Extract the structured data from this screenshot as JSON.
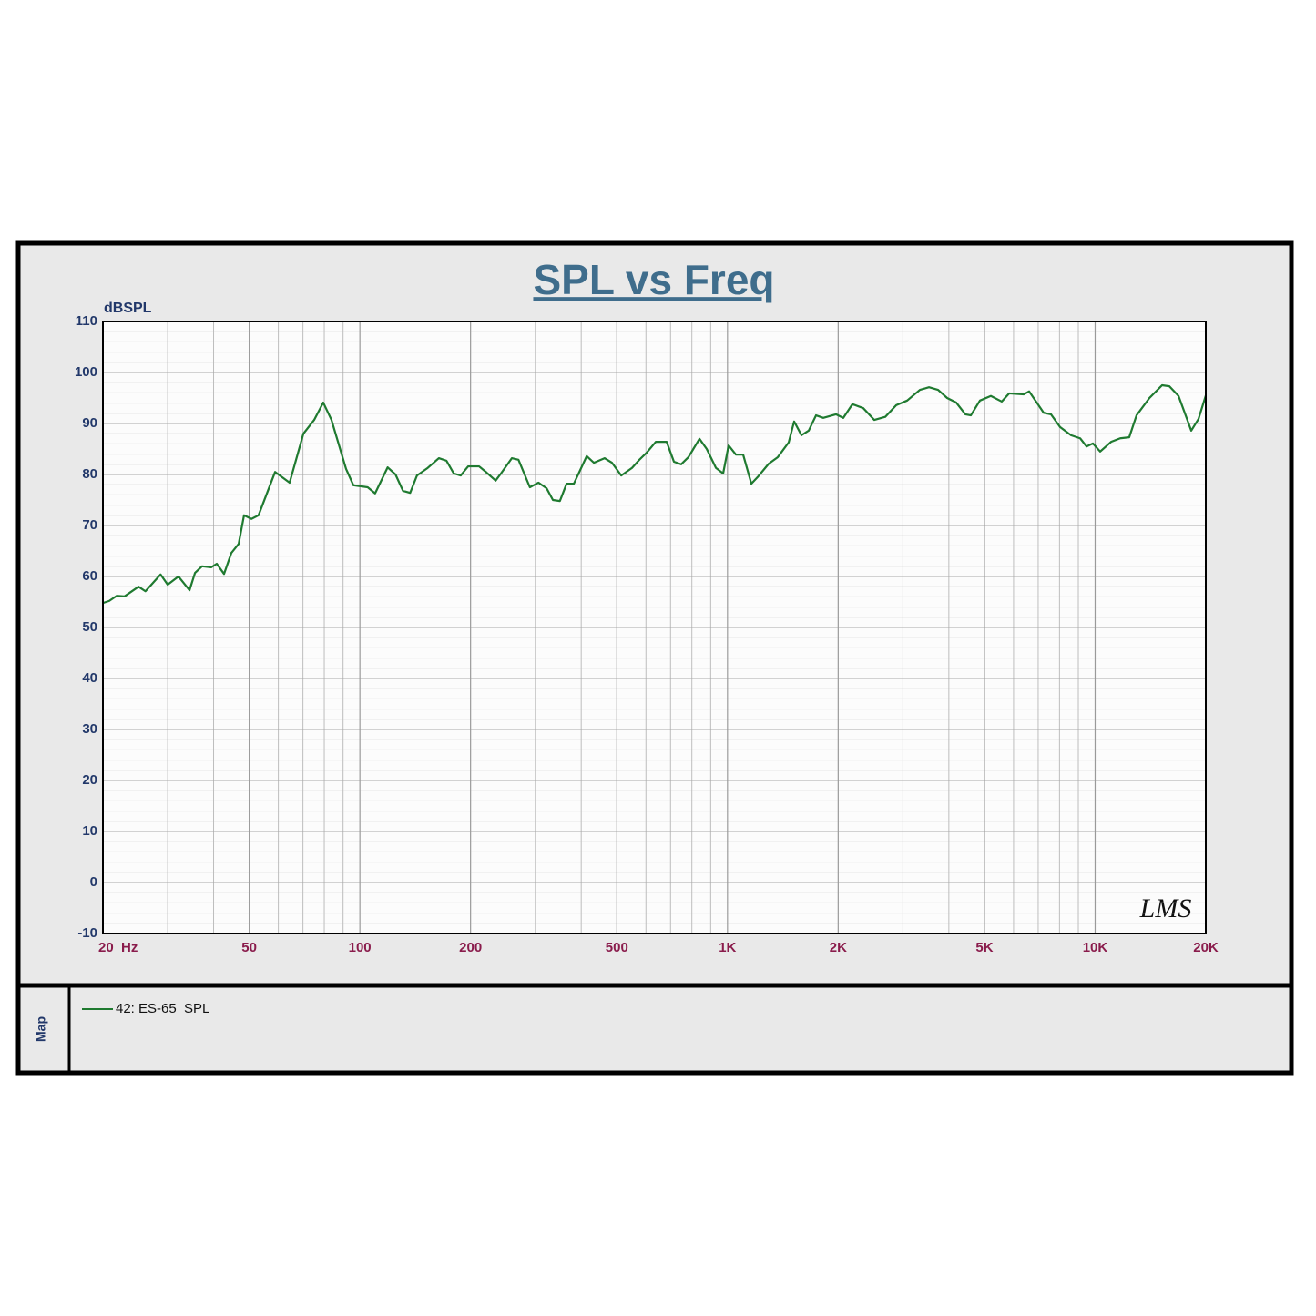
{
  "chart_data": {
    "type": "line",
    "title": "SPL vs Freq",
    "y_label": "dBSPL",
    "xscale": "log",
    "x": [
      20,
      20.8,
      21.8,
      22.9,
      25.0,
      26.1,
      28.7,
      30.0,
      32.1,
      34.4,
      35.6,
      37.2,
      39.4,
      40.8,
      42.7,
      44.7,
      46.8,
      48.4,
      50.7,
      53.0,
      58.8,
      64.4,
      70.2,
      75.1,
      79.5,
      83.7,
      91.7,
      96.0,
      105,
      110,
      119,
      125,
      131,
      137,
      143,
      153,
      164,
      172,
      180,
      188,
      197,
      211,
      221,
      234,
      242,
      259,
      270,
      290,
      306,
      322,
      335,
      350,
      365,
      382,
      414,
      433,
      463,
      485,
      514,
      550,
      576,
      603,
      638,
      683,
      715,
      748,
      783,
      839,
      878,
      930,
      973,
      1007,
      1054,
      1103,
      1161,
      1208,
      1294,
      1370,
      1467,
      1518,
      1589,
      1663,
      1741,
      1822,
      1973,
      2065,
      2187,
      2342,
      2508,
      2686,
      2877,
      3081,
      3337,
      3533,
      3739,
      3958,
      4190,
      4436,
      4591,
      4860,
      5204,
      5573,
      5834,
      6392,
      6615,
      7244,
      7582,
      8028,
      8598,
      9102,
      9474,
      9861,
      10320,
      11050,
      11700,
      12380,
      12960,
      14050,
      15210,
      15920,
      16860,
      18260,
      19110,
      20000
    ],
    "series": [
      {
        "name": "42: ES-65  SPL",
        "color": "#1f7a30",
        "values": [
          54.8,
          55.2,
          56.2,
          56.1,
          58.0,
          57.1,
          60.4,
          58.4,
          60.0,
          57.3,
          60.7,
          62.0,
          61.8,
          62.5,
          60.5,
          64.6,
          66.4,
          72.0,
          71.3,
          72.0,
          80.5,
          78.4,
          88.0,
          90.7,
          94.1,
          90.7,
          81.1,
          77.9,
          77.5,
          76.3,
          81.4,
          80.0,
          76.8,
          76.4,
          79.8,
          81.3,
          83.2,
          82.7,
          80.2,
          79.8,
          81.6,
          81.6,
          80.4,
          78.8,
          80.2,
          83.2,
          82.9,
          77.5,
          78.4,
          77.3,
          75.0,
          74.8,
          78.2,
          78.2,
          83.6,
          82.3,
          83.2,
          82.3,
          79.8,
          81.3,
          82.9,
          84.3,
          86.4,
          86.4,
          82.5,
          82.0,
          83.4,
          87.0,
          85.0,
          81.3,
          80.2,
          85.7,
          83.9,
          83.9,
          78.2,
          79.5,
          82.1,
          83.4,
          86.3,
          90.4,
          87.7,
          88.6,
          91.6,
          91.1,
          91.8,
          91.1,
          93.8,
          93.0,
          90.7,
          91.3,
          93.6,
          94.5,
          96.6,
          97.1,
          96.6,
          95.0,
          94.1,
          91.8,
          91.6,
          94.5,
          95.4,
          94.3,
          95.9,
          95.7,
          96.3,
          92.1,
          91.8,
          89.3,
          87.7,
          87.1,
          85.5,
          86.1,
          84.5,
          86.4,
          87.1,
          87.3,
          91.6,
          95.0,
          97.5,
          97.3,
          95.4,
          88.6,
          90.9,
          95.5
        ]
      }
    ],
    "xlim": [
      20,
      20000
    ],
    "ylim": [
      -10,
      110
    ],
    "xticks": [
      {
        "value": 20,
        "label": "20  Hz"
      },
      50,
      100,
      200,
      500,
      {
        "value": 1000,
        "label": "1K"
      },
      {
        "value": 2000,
        "label": "2K"
      },
      {
        "value": 5000,
        "label": "5K"
      },
      {
        "value": 10000,
        "label": "10K"
      },
      {
        "value": 20000,
        "label": "20K"
      }
    ],
    "yticks": [
      -10,
      0,
      10,
      20,
      30,
      40,
      50,
      60,
      70,
      80,
      90,
      100,
      110
    ],
    "x_minor_grid": [
      30,
      40,
      60,
      70,
      80,
      90,
      300,
      400,
      600,
      700,
      800,
      900,
      3000,
      4000,
      6000,
      7000,
      8000,
      9000
    ],
    "y_minor_grid": [
      -8,
      -6,
      -4,
      -2,
      2,
      4,
      6,
      8,
      12,
      14,
      16,
      18,
      22,
      24,
      26,
      28,
      32,
      34,
      36,
      38,
      42,
      44,
      46,
      48,
      52,
      54,
      56,
      58,
      62,
      64,
      66,
      68,
      72,
      74,
      76,
      78,
      82,
      84,
      86,
      88,
      92,
      94,
      96,
      98,
      102,
      104,
      106,
      108
    ],
    "grid": true,
    "watermark": "LMS",
    "sidebar_label": "Map"
  }
}
